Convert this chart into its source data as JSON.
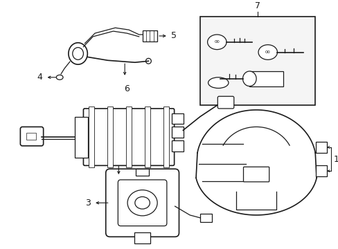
{
  "background_color": "#ffffff",
  "line_color": "#1a1a1a",
  "gray_fill": "#e8e8e8",
  "light_fill": "#f2f2f2",
  "fig_width": 4.89,
  "fig_height": 3.6,
  "dpi": 100
}
